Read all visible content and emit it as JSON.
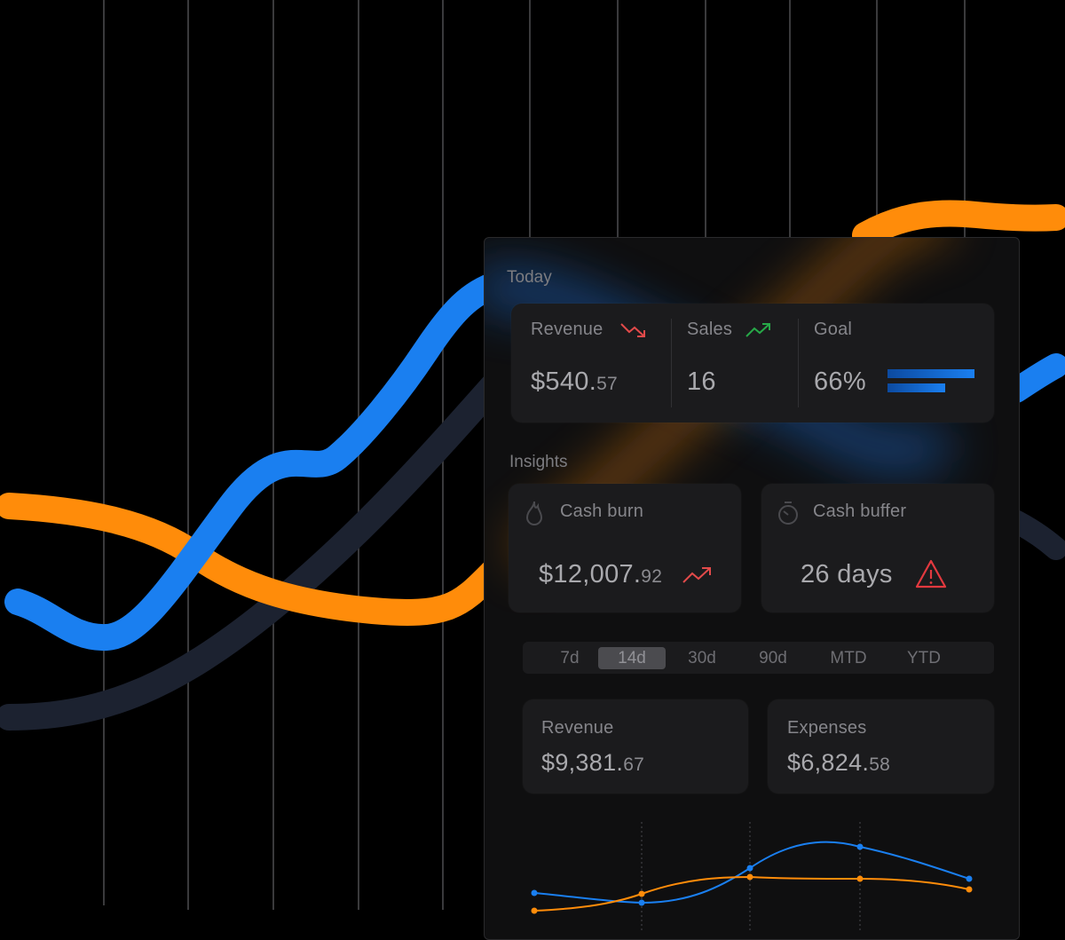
{
  "colors": {
    "blue": "#1a7ff0",
    "orange": "#ff8c0a",
    "navy": "#1c2230",
    "down_red": "#e24a4a",
    "up_green": "#27a848",
    "alert_red": "#e2393f"
  },
  "today": {
    "title": "Today",
    "revenue": {
      "label": "Revenue",
      "whole": "$540.",
      "cents": "57",
      "trend_icon": "trend-down-icon"
    },
    "sales": {
      "label": "Sales",
      "value": "16",
      "trend_icon": "trend-up-icon"
    },
    "goal": {
      "label": "Goal",
      "value": "66%",
      "progress": 0.66
    }
  },
  "insights": {
    "title": "Insights",
    "cash_burn": {
      "label": "Cash burn",
      "whole": "$12,007.",
      "cents": "92",
      "icon": "flame-icon",
      "trend_icon": "trend-up-icon"
    },
    "cash_buffer": {
      "label": "Cash buffer",
      "value": "26 days",
      "icon": "stopwatch-icon",
      "alert_icon": "warning-icon"
    }
  },
  "periods": {
    "tabs": [
      "7d",
      "14d",
      "30d",
      "90d",
      "MTD",
      "YTD"
    ],
    "selected": "14d"
  },
  "summary": {
    "revenue": {
      "label": "Revenue",
      "whole": "$9,381.",
      "cents": "67"
    },
    "expenses": {
      "label": "Expenses",
      "whole": "$6,824.",
      "cents": "58"
    }
  }
}
